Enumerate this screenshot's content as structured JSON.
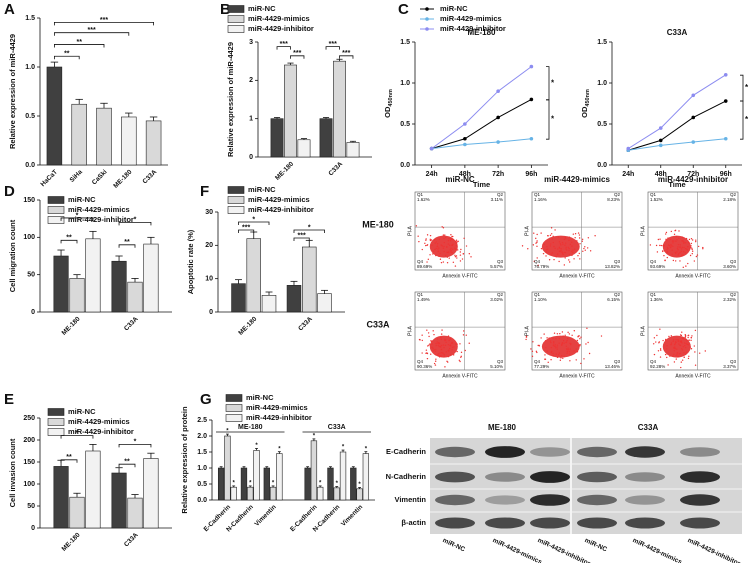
{
  "chart_data": [
    {
      "type": "bar",
      "letter": "A",
      "ylabel": "Relative expression of miR-4429",
      "categories": [
        "HaCaT",
        "SiHa",
        "CaSki",
        "ME-180",
        "C33A"
      ],
      "values": [
        1,
        0.62,
        0.58,
        0.49,
        0.45
      ],
      "errors": [
        0.05,
        0.05,
        0.05,
        0.04,
        0.04
      ],
      "colors": [
        "#404040",
        "#d9d9d9",
        "#d9d9d9",
        "#f2f2f2",
        "#d9d9d9"
      ],
      "ylim": [
        0,
        1.5
      ],
      "yticks": [
        {
          "value": 0,
          "label": "0.0"
        },
        0.5,
        {
          "value": 1,
          "label": "1.0"
        },
        1.5
      ],
      "annotations": [
        "**",
        "**",
        "***",
        "***"
      ]
    },
    {
      "type": "grouped_bar",
      "letter": "B",
      "ylabel": "Relative expression of miR-4429",
      "categories": [
        "ME-180",
        "C33A"
      ],
      "series": [
        {
          "name": "miR-NC",
          "color": "#404040",
          "values": [
            1,
            1
          ],
          "errors": [
            0.03,
            0.03
          ]
        },
        {
          "name": "miR-4429-mimics",
          "color": "#d9d9d9",
          "values": [
            2.4,
            2.5
          ],
          "errors": [
            0.05,
            0.05
          ]
        },
        {
          "name": "miR-4429-inhibitor",
          "color": "#f2f2f2",
          "values": [
            0.45,
            0.38
          ],
          "errors": [
            0.03,
            0.03
          ]
        }
      ],
      "ylim": [
        0,
        3
      ],
      "yticks": [
        0,
        1,
        2,
        3
      ],
      "annotations": [
        "***",
        "***",
        "***",
        "***"
      ]
    },
    {
      "type": "line",
      "letter": "C",
      "title": "ME-180",
      "ylabel": "OD",
      "ylabel_sub": "450nm",
      "xlabel": "Time",
      "categories": [
        "24h",
        "48h",
        "72h",
        "96h"
      ],
      "series": [
        {
          "name": "miR-NC",
          "color": "#000000",
          "values": [
            0.2,
            0.32,
            0.58,
            0.8
          ]
        },
        {
          "name": "miR-4429-mimics",
          "color": "#66b3e6",
          "values": [
            0.2,
            0.25,
            0.28,
            0.32
          ]
        },
        {
          "name": "miR-4429-inhibitor",
          "color": "#8c8cf0",
          "values": [
            0.2,
            0.5,
            0.9,
            1.2
          ]
        }
      ],
      "ylim": [
        0,
        1.5
      ],
      "yticks": [
        {
          "value": 0,
          "label": "0.0"
        },
        0.5,
        {
          "value": 1,
          "label": "1.0"
        },
        1.5
      ],
      "annotations": [
        "*",
        "*"
      ]
    },
    {
      "type": "line",
      "title": "C33A",
      "ylabel": "OD",
      "ylabel_sub": "450nm",
      "xlabel": "Time",
      "categories": [
        "24h",
        "48h",
        "72h",
        "96h"
      ],
      "series": [
        {
          "name": "miR-NC",
          "color": "#000000",
          "values": [
            0.18,
            0.3,
            0.58,
            0.78
          ]
        },
        {
          "name": "miR-4429-mimics",
          "color": "#66b3e6",
          "values": [
            0.18,
            0.24,
            0.28,
            0.32
          ]
        },
        {
          "name": "miR-4429-inhibitor",
          "color": "#8c8cf0",
          "values": [
            0.2,
            0.45,
            0.85,
            1.1
          ]
        }
      ],
      "ylim": [
        0,
        1.5
      ],
      "yticks": [
        {
          "value": 0,
          "label": "0.0"
        },
        0.5,
        {
          "value": 1,
          "label": "1.0"
        },
        1.5
      ],
      "annotations": [
        "*",
        "*"
      ]
    },
    {
      "type": "grouped_bar",
      "letter": "D",
      "ylabel": "Cell migration count",
      "categories": [
        "ME-180",
        "C33A"
      ],
      "series": [
        {
          "name": "miR-NC",
          "color": "#404040",
          "values": [
            75,
            68
          ],
          "errors": [
            8,
            7
          ]
        },
        {
          "name": "miR-4429-mimics",
          "color": "#d9d9d9",
          "values": [
            45,
            40
          ],
          "errors": [
            5,
            5
          ]
        },
        {
          "name": "miR-4429-inhibitor",
          "color": "#f2f2f2",
          "values": [
            98,
            91
          ],
          "errors": [
            10,
            9
          ]
        }
      ],
      "ylim": [
        0,
        150
      ],
      "yticks": [
        0,
        50,
        100,
        150
      ],
      "annotations": [
        "*",
        "**",
        "*",
        "**"
      ]
    },
    {
      "type": "grouped_bar",
      "letter": "E",
      "ylabel": "Cell invasion count",
      "categories": [
        "ME-180",
        "C33A"
      ],
      "series": [
        {
          "name": "miR-NC",
          "color": "#404040",
          "values": [
            140,
            125
          ],
          "errors": [
            14,
            12
          ]
        },
        {
          "name": "miR-4429-mimics",
          "color": "#d9d9d9",
          "values": [
            70,
            68
          ],
          "errors": [
            9,
            8
          ]
        },
        {
          "name": "miR-4429-inhibitor",
          "color": "#f2f2f2",
          "values": [
            175,
            158
          ],
          "errors": [
            15,
            12
          ]
        }
      ],
      "ylim": [
        0,
        250
      ],
      "yticks": [
        0,
        50,
        100,
        150,
        200,
        250
      ],
      "annotations": [
        "*",
        "**",
        "*",
        "**"
      ]
    },
    {
      "type": "grouped_bar",
      "letter": "F",
      "ylabel": "Apoptotic rate (%)",
      "categories": [
        "ME-180",
        "C33A"
      ],
      "series": [
        {
          "name": "miR-NC",
          "color": "#404040",
          "values": [
            8.5,
            8
          ],
          "errors": [
            1.2,
            1.2
          ]
        },
        {
          "name": "miR-4429-mimics",
          "color": "#d9d9d9",
          "values": [
            22,
            19.5
          ],
          "errors": [
            2,
            2
          ]
        },
        {
          "name": "miR-4429-inhibitor",
          "color": "#f2f2f2",
          "values": [
            5,
            5.5
          ],
          "errors": [
            1,
            1
          ]
        }
      ],
      "ylim": [
        0,
        30
      ],
      "yticks": [
        0,
        10,
        20,
        30
      ],
      "annotations": [
        "*",
        "***",
        "*",
        "***"
      ]
    },
    {
      "type": "grouped_bar",
      "letter": "G",
      "ylabel": "Relative expression of protein",
      "groups": [
        "ME-180",
        "C33A"
      ],
      "categories": [
        "E-Cadherin",
        "N-Cadherin",
        "Vimentin",
        "E-Cadherin",
        "N-Cadherin",
        "Vimentin"
      ],
      "series": [
        {
          "name": "miR-NC",
          "color": "#404040",
          "values": [
            1,
            1,
            1,
            1,
            1,
            1
          ],
          "errors": [
            0.04,
            0.04,
            0.04,
            0.04,
            0.04,
            0.04
          ]
        },
        {
          "name": "miR-4429-mimics",
          "color": "#d9d9d9",
          "values": [
            2,
            0.4,
            0.4,
            1.85,
            0.38,
            0.35
          ],
          "errors": [
            0.06,
            0.04,
            0.04,
            0.06,
            0.04,
            0.04
          ]
        },
        {
          "name": "miR-4429-inhibitor",
          "color": "#f2f2f2",
          "values": [
            0.4,
            1.55,
            1.45,
            0.4,
            1.5,
            1.45
          ],
          "errors": [
            0.04,
            0.06,
            0.06,
            0.04,
            0.06,
            0.06
          ]
        }
      ],
      "ylim": [
        0,
        2.5
      ],
      "yticks": [
        {
          "value": 0,
          "label": "0.0"
        },
        0.5,
        {
          "value": 1,
          "label": "1.0"
        },
        1.5,
        {
          "value": 2,
          "label": "2.0"
        },
        2.5
      ],
      "annotations": [
        "*",
        "*",
        "*",
        "*",
        "*",
        "*",
        "*",
        "*",
        "*",
        "*",
        "*",
        "*"
      ]
    }
  ],
  "flow": {
    "columns": [
      "miR-NC",
      "miR-4429-mimics",
      "miR-4429-inhibitor"
    ],
    "rows": [
      "ME-180",
      "C33A"
    ],
    "x_label": "Annexin V-FITC",
    "y_label": "PI-A",
    "quadrants": [
      "Q1",
      "Q2",
      "Q3",
      "Q4"
    ],
    "percentages": [
      [
        [
          "1.62%",
          "3.11%",
          "5.57%",
          "89.69%"
        ],
        [
          "1.16%",
          "8.23%",
          "13.82%",
          "76.79%"
        ],
        [
          "1.52%",
          "2.18%",
          "3.60%",
          "93.69%"
        ]
      ],
      [
        [
          "1.49%",
          "3.02%",
          "5.10%",
          "90.36%"
        ],
        [
          "1.10%",
          "6.15%",
          "13.46%",
          "77.29%"
        ],
        [
          "1.36%",
          "2.32%",
          "3.37%",
          "92.28%"
        ]
      ]
    ]
  },
  "blot": {
    "cell_lines": [
      "ME-180",
      "C33A"
    ],
    "proteins": [
      "E-Cadherin",
      "N-Cadherin",
      "Vimentin",
      "β-actin"
    ],
    "lanes": [
      "miR-NC",
      "miR-4429-mimics",
      "miR-4429-inhibitor",
      "miR-NC",
      "miR-4429-mimics",
      "miR-4429-inhibitor"
    ]
  }
}
